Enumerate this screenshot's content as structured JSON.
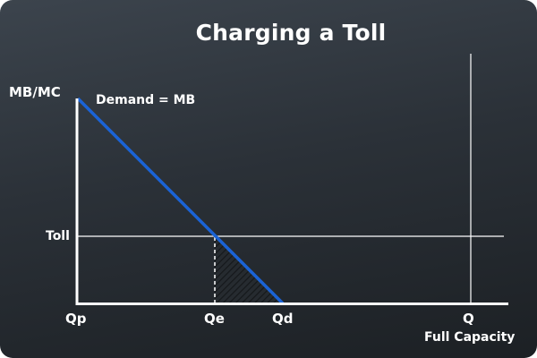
{
  "title": "Charging a Toll",
  "y_axis_label": "MB/MC",
  "demand_label": "Demand = MB",
  "toll_label": "Toll",
  "x_labels": {
    "qp": "Qp",
    "qe": "Qe",
    "qd": "Qd",
    "q": "Q",
    "full_capacity": "Full Capacity"
  },
  "colors": {
    "demand_line": "#1a63d6",
    "axes": "#ffffff",
    "background": "#2b3138"
  }
}
